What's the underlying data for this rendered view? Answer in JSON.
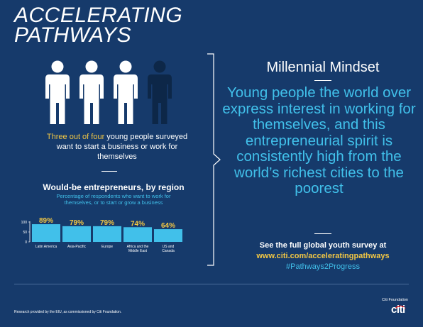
{
  "header": {
    "title_line1": "ACCELERATING",
    "title_line2": "PATHWAYS"
  },
  "intro": {
    "highlight": "Three out of four",
    "rest": " young people surveyed want to start a business or work for themselves"
  },
  "people_icons": [
    "person-icon",
    "person-icon",
    "person-icon",
    "person-icon"
  ],
  "chart_data": {
    "type": "bar",
    "title": "Would-be entrepreneurs, by region",
    "subtitle": "Percentage of respondents who want to work for themselves, or to start or grow a business",
    "categories": [
      "Latin America",
      "Asia-Pacific",
      "Europe",
      "Africa and the Middle East",
      "US and Canada"
    ],
    "category_labels": [
      [
        "Latin America"
      ],
      [
        "Asia-Pacific"
      ],
      [
        "Europe"
      ],
      [
        "Africa and the",
        "Middle East"
      ],
      [
        "US and",
        "Canada"
      ]
    ],
    "values": [
      89,
      79,
      79,
      74,
      64
    ],
    "value_labels": [
      "89%",
      "79%",
      "79%",
      "74%",
      "64%"
    ],
    "ylim": [
      0,
      100
    ],
    "yticks": [
      0,
      50,
      100
    ],
    "xlabel": "",
    "ylabel": "",
    "bar_color": "#41c0ea",
    "label_color": "#f2c744"
  },
  "mindset": {
    "title": "Millennial Mindset",
    "body": "Young people the world over express interest in working for themselves, and this entrepreneurial spirit is consistently high from the world’s richest cities to the poorest"
  },
  "cta": {
    "line1": "See the full global youth survey at",
    "url": "www.citi.com/acceleratingpathways",
    "hashtag": "#Pathways2Progress"
  },
  "footer": {
    "note": "Research provided by the EIU, as commissioned by Citi Foundation.",
    "org": "Citi Foundation",
    "logo": "citi"
  },
  "colors": {
    "background": "#163a6b",
    "accent_blue": "#41c0ea",
    "accent_yellow": "#f2c744",
    "dim_figure": "#0d2748"
  }
}
